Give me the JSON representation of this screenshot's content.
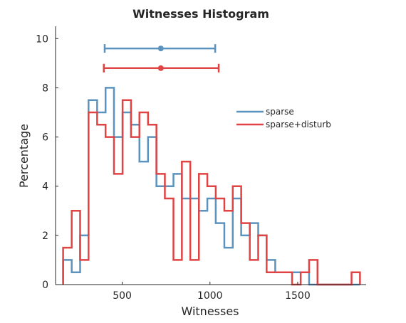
{
  "chart_data": {
    "type": "histogram",
    "title": "Witnesses Histogram",
    "xlabel": "Witnesses",
    "ylabel": "Percentage",
    "xlim": [
      120,
      1890
    ],
    "ylim": [
      0,
      10.5
    ],
    "xticks": [
      500,
      1000,
      1500
    ],
    "yticks": [
      0,
      2,
      4,
      6,
      8,
      10
    ],
    "grid": false,
    "legend_placement": "upper-right-middle",
    "series": [
      {
        "name": "sparse",
        "color": "#5b93be",
        "bin_edges": [
          163,
          212,
          260,
          308,
          357,
          405,
          453,
          502,
          550,
          598,
          647,
          695,
          743,
          792,
          840,
          888,
          937,
          985,
          1033,
          1082,
          1130,
          1178,
          1227,
          1275,
          1323,
          1372,
          1420,
          1468,
          1517,
          1565,
          1613,
          1662,
          1710,
          1758,
          1807,
          1855
        ],
        "values": [
          1.0,
          0.5,
          2.0,
          7.5,
          7.0,
          8.0,
          6.0,
          7.0,
          6.5,
          5.0,
          6.0,
          4.0,
          4.0,
          4.5,
          3.5,
          3.5,
          3.0,
          3.5,
          2.5,
          1.5,
          3.5,
          2.0,
          2.5,
          2.0,
          1.0,
          0.5,
          0.5,
          0.5,
          0.5,
          0.0,
          0.0,
          0.0,
          0.0,
          0.0,
          0.0
        ],
        "mean": 720,
        "error_low": 400,
        "error_high": 1030
      },
      {
        "name": "sparse+disturb",
        "color": "#e04343",
        "bin_edges": [
          163,
          212,
          260,
          308,
          357,
          405,
          453,
          502,
          550,
          598,
          647,
          695,
          743,
          792,
          840,
          888,
          937,
          985,
          1033,
          1082,
          1130,
          1178,
          1227,
          1275,
          1323,
          1372,
          1420,
          1468,
          1517,
          1565,
          1613,
          1662,
          1710,
          1758,
          1807,
          1855
        ],
        "values": [
          1.5,
          3.0,
          1.0,
          7.0,
          6.5,
          6.0,
          4.5,
          7.5,
          6.0,
          7.0,
          6.5,
          4.5,
          3.5,
          1.0,
          5.0,
          1.0,
          4.5,
          4.0,
          3.5,
          3.0,
          4.0,
          2.5,
          1.0,
          2.0,
          0.5,
          0.5,
          0.5,
          0.0,
          0.5,
          1.0,
          0.0,
          0.0,
          0.0,
          0.0,
          0.5
        ],
        "mean": 720,
        "error_low": 395,
        "error_high": 1050
      }
    ]
  }
}
